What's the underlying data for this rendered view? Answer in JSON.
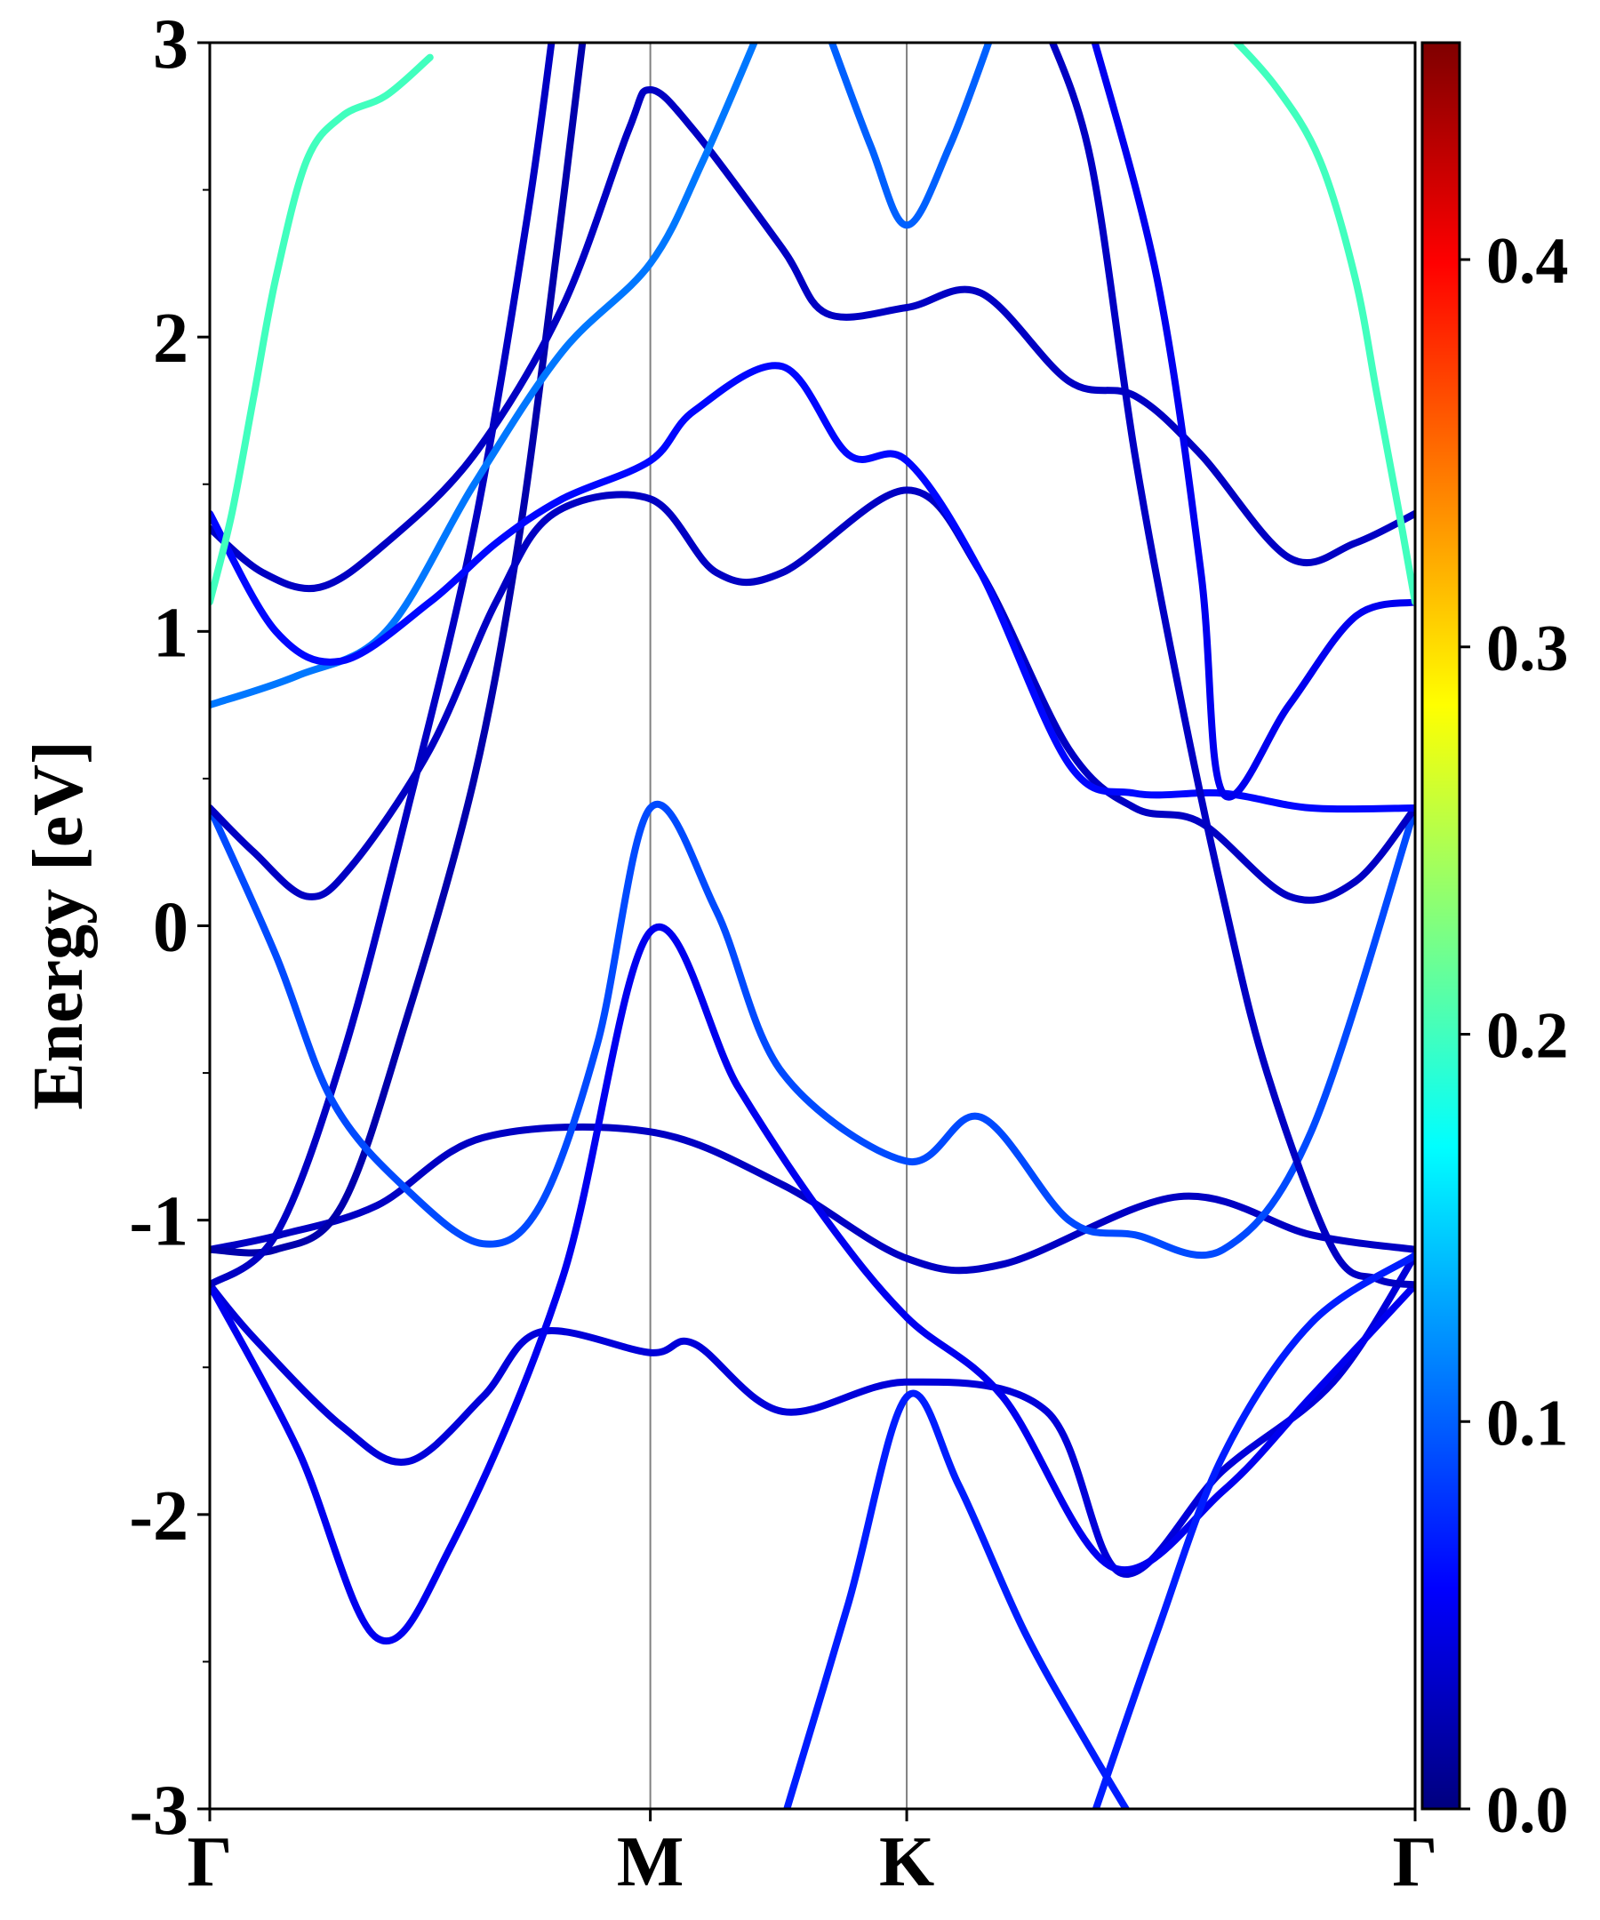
{
  "chart_data": {
    "type": "line",
    "title": "",
    "xlabel": "",
    "ylabel": "Energy [eV]",
    "ylim": [
      -3,
      3
    ],
    "x_ticks": [
      {
        "label": "Γ",
        "k": 0
      },
      {
        "label": "M",
        "k": 1.0
      },
      {
        "label": "K",
        "k": 1.582
      },
      {
        "label": "Γ",
        "k": 2.736
      }
    ],
    "y_ticks": [
      "-3",
      "-2",
      "-1",
      "0",
      "1",
      "2",
      "3"
    ],
    "colorbar": {
      "colormap": "jet",
      "range": [
        0.0,
        0.456
      ],
      "tick_labels": [
        "0.0",
        "0.1",
        "0.2",
        "0.3",
        "0.4"
      ],
      "tick_values": [
        0.0,
        0.1,
        0.2,
        0.3,
        0.4
      ]
    },
    "series": [
      {
        "weight": 0.03,
        "points": [
          [
            0,
            -1.1
          ],
          [
            0.16,
            -1.05
          ],
          [
            0.38,
            -0.95
          ],
          [
            0.62,
            -0.72
          ],
          [
            1.0,
            -0.7
          ],
          [
            1.3,
            -0.88
          ],
          [
            1.582,
            -1.13
          ],
          [
            1.8,
            -1.15
          ],
          [
            2.2,
            -0.92
          ],
          [
            2.5,
            -1.05
          ],
          [
            2.736,
            -1.1
          ]
        ]
      },
      {
        "weight": 0.04,
        "points": [
          [
            0,
            -1.22
          ],
          [
            0.1,
            -1.4
          ],
          [
            0.3,
            -1.7
          ],
          [
            0.45,
            -1.82
          ],
          [
            0.62,
            -1.6
          ],
          [
            0.75,
            -1.38
          ],
          [
            1.0,
            -1.45
          ],
          [
            1.1,
            -1.42
          ],
          [
            1.3,
            -1.65
          ],
          [
            1.582,
            -1.55
          ],
          [
            1.9,
            -1.65
          ],
          [
            2.07,
            -2.2
          ],
          [
            2.3,
            -1.85
          ],
          [
            2.55,
            -1.55
          ],
          [
            2.736,
            -1.12
          ]
        ]
      },
      {
        "weight": 0.05,
        "points": [
          [
            0,
            -1.22
          ],
          [
            0.2,
            -1.78
          ],
          [
            0.38,
            -2.42
          ],
          [
            0.55,
            -2.1
          ],
          [
            0.8,
            -1.2
          ],
          [
            1.0,
            -0.02
          ],
          [
            1.2,
            -0.55
          ],
          [
            1.4,
            -1.0
          ],
          [
            1.582,
            -1.33
          ],
          [
            1.8,
            -1.6
          ],
          [
            2.05,
            -2.18
          ],
          [
            2.3,
            -1.92
          ],
          [
            2.5,
            -1.6
          ],
          [
            2.736,
            -1.22
          ]
        ]
      },
      {
        "weight": 0.02,
        "points": [
          [
            0,
            -1.1
          ],
          [
            0.15,
            -1.1
          ],
          [
            0.3,
            -0.95
          ],
          [
            0.45,
            -0.3
          ],
          [
            0.6,
            0.5
          ],
          [
            0.7,
            1.3
          ],
          [
            0.78,
            2.2
          ],
          [
            0.85,
            3.05
          ]
        ]
      },
      {
        "weight": 0.03,
        "points": [
          [
            0,
            -1.22
          ],
          [
            0.15,
            -1.05
          ],
          [
            0.3,
            -0.45
          ],
          [
            0.45,
            0.4
          ],
          [
            0.6,
            1.35
          ],
          [
            0.72,
            2.4
          ],
          [
            0.78,
            3.05
          ]
        ]
      },
      {
        "weight": 0.09,
        "points": [
          [
            0,
            0.4
          ],
          [
            0.15,
            -0.1
          ],
          [
            0.28,
            -0.6
          ],
          [
            0.45,
            -0.9
          ],
          [
            0.62,
            -1.08
          ],
          [
            0.75,
            -0.95
          ],
          [
            0.88,
            -0.4
          ],
          [
            1.0,
            0.4
          ],
          [
            1.15,
            0.05
          ],
          [
            1.3,
            -0.5
          ],
          [
            1.582,
            -0.8
          ],
          [
            1.75,
            -0.65
          ],
          [
            1.95,
            -1.0
          ],
          [
            2.1,
            -1.05
          ],
          [
            2.3,
            -1.1
          ],
          [
            2.5,
            -0.7
          ],
          [
            2.736,
            0.4
          ]
        ]
      },
      {
        "weight": 0.03,
        "points": [
          [
            0,
            0.4
          ],
          [
            0.1,
            0.25
          ],
          [
            0.22,
            0.1
          ],
          [
            0.32,
            0.2
          ],
          [
            0.5,
            0.6
          ],
          [
            0.65,
            1.1
          ],
          [
            0.78,
            1.4
          ],
          [
            1.0,
            1.45
          ],
          [
            1.15,
            1.2
          ],
          [
            1.3,
            1.2
          ],
          [
            1.582,
            1.48
          ],
          [
            1.75,
            1.2
          ],
          [
            1.95,
            0.6
          ],
          [
            2.1,
            0.4
          ],
          [
            2.25,
            0.35
          ],
          [
            2.45,
            0.1
          ],
          [
            2.6,
            0.15
          ],
          [
            2.736,
            0.4
          ]
        ]
      },
      {
        "weight": 0.03,
        "points": [
          [
            0,
            1.35
          ],
          [
            0.12,
            1.2
          ],
          [
            0.25,
            1.15
          ],
          [
            0.4,
            1.3
          ],
          [
            0.6,
            1.6
          ],
          [
            0.8,
            2.1
          ],
          [
            0.95,
            2.7
          ],
          [
            1.0,
            2.84
          ],
          [
            1.1,
            2.7
          ],
          [
            1.3,
            2.3
          ],
          [
            1.4,
            2.08
          ],
          [
            1.582,
            2.1
          ],
          [
            1.75,
            2.15
          ],
          [
            1.95,
            1.85
          ],
          [
            2.1,
            1.8
          ],
          [
            2.25,
            1.6
          ],
          [
            2.45,
            1.25
          ],
          [
            2.6,
            1.3
          ],
          [
            2.736,
            1.4
          ]
        ]
      },
      {
        "weight": 0.11,
        "points": [
          [
            0,
            0.75
          ],
          [
            0.2,
            0.85
          ],
          [
            0.4,
            1.0
          ],
          [
            0.6,
            1.5
          ],
          [
            0.8,
            1.95
          ],
          [
            1.0,
            2.25
          ],
          [
            1.12,
            2.6
          ],
          [
            1.25,
            3.05
          ]
        ]
      },
      {
        "weight": 0.06,
        "points": [
          [
            0,
            1.4
          ],
          [
            0.15,
            1.0
          ],
          [
            0.3,
            0.9
          ],
          [
            0.5,
            1.1
          ],
          [
            0.65,
            1.3
          ],
          [
            0.8,
            1.45
          ],
          [
            1.0,
            1.58
          ],
          [
            1.1,
            1.75
          ],
          [
            1.3,
            1.9
          ],
          [
            1.45,
            1.6
          ],
          [
            1.582,
            1.58
          ],
          [
            1.75,
            1.2
          ],
          [
            1.95,
            0.55
          ],
          [
            2.1,
            0.45
          ],
          [
            2.3,
            0.45
          ],
          [
            2.5,
            0.4
          ],
          [
            2.736,
            0.4
          ]
        ]
      },
      {
        "weight": 0.1,
        "points": [
          [
            1.4,
            3.05
          ],
          [
            1.5,
            2.65
          ],
          [
            1.582,
            2.38
          ],
          [
            1.68,
            2.65
          ],
          [
            1.78,
            3.05
          ]
        ]
      },
      {
        "weight": 0.03,
        "points": [
          [
            1.9,
            3.05
          ],
          [
            2.0,
            2.6
          ],
          [
            2.1,
            1.6
          ],
          [
            2.2,
            0.8
          ],
          [
            2.3,
            0.1
          ],
          [
            2.4,
            -0.5
          ],
          [
            2.55,
            -1.1
          ],
          [
            2.65,
            -1.2
          ],
          [
            2.736,
            -1.22
          ]
        ]
      },
      {
        "weight": 0.05,
        "points": [
          [
            2.0,
            3.05
          ],
          [
            2.15,
            2.2
          ],
          [
            2.25,
            1.2
          ],
          [
            2.3,
            0.45
          ],
          [
            2.45,
            0.75
          ],
          [
            2.6,
            1.05
          ],
          [
            2.736,
            1.1
          ]
        ]
      },
      {
        "weight": 0.07,
        "points": [
          [
            1.3,
            -3.05
          ],
          [
            1.45,
            -2.3
          ],
          [
            1.582,
            -1.6
          ],
          [
            1.7,
            -1.9
          ],
          [
            1.85,
            -2.4
          ],
          [
            2.0,
            -2.8
          ],
          [
            2.1,
            -3.05
          ]
        ]
      },
      {
        "weight": 0.07,
        "points": [
          [
            2.0,
            -3.05
          ],
          [
            2.15,
            -2.4
          ],
          [
            2.3,
            -1.8
          ],
          [
            2.5,
            -1.35
          ],
          [
            2.736,
            -1.12
          ]
        ]
      },
      {
        "weight": 0.2,
        "points": [
          [
            0,
            1.1
          ],
          [
            0.05,
            1.4
          ],
          [
            0.1,
            1.8
          ],
          [
            0.15,
            2.2
          ],
          [
            0.22,
            2.6
          ],
          [
            0.3,
            2.75
          ],
          [
            0.4,
            2.82
          ],
          [
            0.5,
            2.95
          ]
        ]
      },
      {
        "weight": 0.2,
        "points": [
          [
            2.736,
            1.1
          ],
          [
            2.7,
            1.4
          ],
          [
            2.65,
            1.8
          ],
          [
            2.6,
            2.2
          ],
          [
            2.52,
            2.6
          ],
          [
            2.42,
            2.85
          ],
          [
            2.3,
            3.05
          ]
        ]
      }
    ]
  }
}
